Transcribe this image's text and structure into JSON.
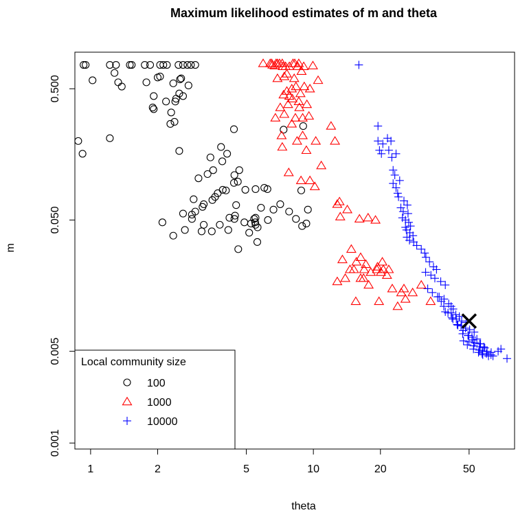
{
  "chart_data": {
    "type": "scatter",
    "title": "Maximum likelihood estimates of  m  and  theta",
    "xlabel": "theta",
    "ylabel": "m",
    "xscale": "log",
    "yscale": "log",
    "xlim": [
      0.85,
      80
    ],
    "ylim": [
      0.0009,
      0.95
    ],
    "xticks": [
      1,
      2,
      5,
      10,
      20,
      50
    ],
    "xtick_labels": [
      "1",
      "2",
      "5",
      "10",
      "20",
      "50"
    ],
    "yticks": [
      0.001,
      0.005,
      0.05,
      0.5
    ],
    "ytick_labels": [
      "0.001",
      "0.005",
      "0.050",
      "0.500"
    ],
    "grid": false,
    "legend": {
      "title": "Local community size",
      "placement": "bottom-left",
      "entries": [
        "100",
        "1000",
        "10000"
      ]
    },
    "marker": {
      "theta": 50,
      "m": 0.0085,
      "symbol": "X"
    },
    "series": [
      {
        "name": "100",
        "marker": "circle",
        "color": "#000000",
        "x": [
          0.93,
          0.95,
          1.22,
          1.3,
          1.5,
          1.53,
          1.75,
          1.85,
          2.05,
          2.12,
          2.2,
          2.48,
          2.6,
          2.72,
          2.82,
          2.95,
          1.28,
          1.02,
          1.33,
          1.38,
          1.78,
          2.0,
          2.05,
          2.52,
          2.55,
          2.35,
          1.92,
          1.9,
          2.42,
          2.18,
          2.4,
          2.6,
          2.75,
          2.5,
          2.3,
          2.38,
          0.88,
          0.92,
          1.22,
          1.92,
          2.28,
          3.85,
          3.9,
          4.1,
          4.65,
          4.42,
          3.45,
          4.05,
          3.05,
          3.35,
          3.55,
          4.4,
          4.5,
          4.95,
          5.5,
          5.82,
          6.62,
          7.1,
          6.22,
          3.52,
          3.62,
          3.72,
          2.9,
          3.22,
          3.18,
          2.6,
          3.92,
          4.58,
          6.02,
          7.78,
          8.82,
          9.45,
          8.35,
          8.9,
          9.3,
          2.95,
          2.85,
          2.85,
          3.22,
          3.8,
          4.2,
          4.45,
          4.9,
          5.25,
          5.5,
          5.48,
          5.42,
          5.5,
          6.25,
          2.1,
          2.65,
          3.15,
          3.5,
          4.15,
          4.42,
          5.15,
          5.6,
          2.35,
          4.4,
          2.5,
          7.35,
          9.0,
          5.62,
          4.6
        ],
        "y": [
          0.76,
          0.76,
          0.76,
          0.76,
          0.76,
          0.76,
          0.76,
          0.76,
          0.76,
          0.76,
          0.76,
          0.76,
          0.76,
          0.76,
          0.76,
          0.76,
          0.66,
          0.58,
          0.56,
          0.52,
          0.56,
          0.61,
          0.62,
          0.59,
          0.6,
          0.55,
          0.44,
          0.36,
          0.42,
          0.4,
          0.4,
          0.44,
          0.53,
          0.46,
          0.33,
          0.28,
          0.2,
          0.16,
          0.21,
          0.35,
          0.27,
          0.18,
          0.14,
          0.16,
          0.12,
          0.11,
          0.15,
          0.084,
          0.104,
          0.112,
          0.12,
          0.096,
          0.065,
          0.085,
          0.086,
          0.062,
          0.06,
          0.066,
          0.086,
          0.071,
          0.075,
          0.08,
          0.072,
          0.066,
          0.063,
          0.056,
          0.085,
          0.098,
          0.088,
          0.058,
          0.084,
          0.06,
          0.051,
          0.045,
          0.047,
          0.058,
          0.055,
          0.051,
          0.046,
          0.046,
          0.052,
          0.054,
          0.048,
          0.047,
          0.046,
          0.048,
          0.051,
          0.052,
          0.05,
          0.048,
          0.042,
          0.041,
          0.041,
          0.042,
          0.051,
          0.04,
          0.034,
          0.038,
          0.246,
          0.168,
          0.244,
          0.26,
          0.044,
          0.03
        ]
      },
      {
        "name": "1000",
        "marker": "triangle",
        "color": "#ff0000",
        "x": [
          5.95,
          6.4,
          6.5,
          6.8,
          6.9,
          7.05,
          7.25,
          8.1,
          8.25,
          8.6,
          6.55,
          6.7,
          7.3,
          7.5,
          7.8,
          8.5,
          9.05,
          9.95,
          6.9,
          7.4,
          7.6,
          8.2,
          8.85,
          7.6,
          8.0,
          8.35,
          9.1,
          9.65,
          7.35,
          7.8,
          8.05,
          8.6,
          8.75,
          7.1,
          7.7,
          8.65,
          9.35,
          7.2,
          8.0,
          8.95,
          9.55,
          10.5,
          12.0,
          6.75,
          7.4,
          8.3,
          8.95,
          10.25,
          7.25,
          8.45,
          9.3,
          10.85,
          12.5,
          7.75,
          8.8,
          9.65,
          10.15,
          12.8,
          13.1,
          14.2,
          16.1,
          17.6,
          19.0,
          13.2,
          14.8,
          16.3,
          17.2,
          19.4,
          20.6,
          21.8,
          13.5,
          15.6,
          16.9,
          18.1,
          20.4,
          21.4,
          13.9,
          15.2,
          16.3,
          17.7,
          19.3,
          12.8,
          14.6,
          16.8,
          20.1,
          22.6,
          24.8,
          25.5,
          27.9,
          30.5,
          15.5,
          19.7,
          23.9,
          25.9,
          33.6
        ],
        "y": [
          0.78,
          0.78,
          0.78,
          0.78,
          0.78,
          0.78,
          0.78,
          0.78,
          0.78,
          0.78,
          0.76,
          0.75,
          0.74,
          0.74,
          0.74,
          0.74,
          0.74,
          0.75,
          0.6,
          0.62,
          0.65,
          0.6,
          0.68,
          0.48,
          0.5,
          0.52,
          0.52,
          0.5,
          0.45,
          0.44,
          0.42,
          0.4,
          0.46,
          0.36,
          0.38,
          0.36,
          0.38,
          0.22,
          0.27,
          0.3,
          0.31,
          0.58,
          0.26,
          0.3,
          0.32,
          0.3,
          0.22,
          0.2,
          0.18,
          0.2,
          0.17,
          0.13,
          0.2,
          0.115,
          0.1,
          0.1,
          0.09,
          0.066,
          0.069,
          0.06,
          0.051,
          0.052,
          0.05,
          0.053,
          0.03,
          0.026,
          0.023,
          0.022,
          0.021,
          0.021,
          0.025,
          0.024,
          0.021,
          0.02,
          0.024,
          0.019,
          0.018,
          0.021,
          0.018,
          0.016,
          0.021,
          0.017,
          0.021,
          0.018,
          0.02,
          0.015,
          0.014,
          0.015,
          0.014,
          0.016,
          0.012,
          0.012,
          0.011,
          0.0125,
          0.012
        ],
        "note": ""
      },
      {
        "name": "10000",
        "marker": "plus",
        "color": "#0000ff",
        "x": [
          16,
          19.5,
          19.5,
          19.8,
          20.5,
          21.5,
          22.3,
          20.2,
          21.8,
          22.5,
          23.5,
          22.8,
          23.2,
          24.4,
          22.8,
          23.5,
          23.9,
          24.1,
          25.5,
          26.4,
          24.7,
          25.3,
          26.6,
          25.1,
          25.9,
          26.8,
          27.3,
          25.9,
          26.2,
          27.1,
          28.0,
          26.3,
          27.0,
          28.2,
          29.1,
          30.5,
          31.6,
          32.0,
          33.2,
          34.6,
          35.7,
          31.9,
          33.7,
          35.1,
          37.3,
          39.1,
          32.6,
          34.2,
          36.7,
          38.6,
          37.5,
          40.5,
          41.5,
          42.4,
          39.1,
          41.5,
          43.6,
          45.2,
          41.9,
          43.8,
          46.3,
          48.5,
          44.2,
          46.0,
          48.2,
          50.3,
          52.7,
          46.8,
          49.4,
          51.5,
          54.2,
          47.2,
          49.9,
          53.0,
          56.3,
          49.1,
          52.5,
          56.0,
          58.8,
          52.3,
          55.6,
          57.5,
          60.2,
          55.1,
          57.2,
          59.8,
          62.7,
          57.6,
          61.1,
          64.0,
          67.5,
          74.0,
          69.5,
          62.8,
          58.2,
          55.7,
          52.1,
          49.8,
          47.0,
          44.5,
          42.3,
          40.2,
          38.5,
          36.1
        ],
        "y": [
          0.76,
          0.26,
          0.2,
          0.17,
          0.19,
          0.21,
          0.2,
          0.16,
          0.17,
          0.15,
          0.16,
          0.12,
          0.11,
          0.1,
          0.095,
          0.088,
          0.08,
          0.075,
          0.07,
          0.065,
          0.062,
          0.058,
          0.056,
          0.052,
          0.05,
          0.048,
          0.045,
          0.044,
          0.042,
          0.04,
          0.038,
          0.037,
          0.035,
          0.034,
          0.032,
          0.03,
          0.028,
          0.026,
          0.024,
          0.022,
          0.021,
          0.02,
          0.019,
          0.018,
          0.017,
          0.016,
          0.015,
          0.014,
          0.013,
          0.0125,
          0.012,
          0.0115,
          0.011,
          0.0105,
          0.01,
          0.0098,
          0.0095,
          0.0092,
          0.009,
          0.0088,
          0.0085,
          0.0083,
          0.008,
          0.0078,
          0.0075,
          0.0073,
          0.007,
          0.0068,
          0.0066,
          0.0064,
          0.0062,
          0.006,
          0.0059,
          0.0058,
          0.0057,
          0.0056,
          0.0055,
          0.0054,
          0.0053,
          0.0052,
          0.0051,
          0.005,
          0.005,
          0.0049,
          0.0048,
          0.0048,
          0.0047,
          0.0047,
          0.0046,
          0.0046,
          0.005,
          0.0044,
          0.0052,
          0.0049,
          0.0054,
          0.0057,
          0.0061,
          0.0066,
          0.0072,
          0.0079,
          0.0088,
          0.0098,
          0.011,
          0.013
        ]
      }
    ]
  }
}
